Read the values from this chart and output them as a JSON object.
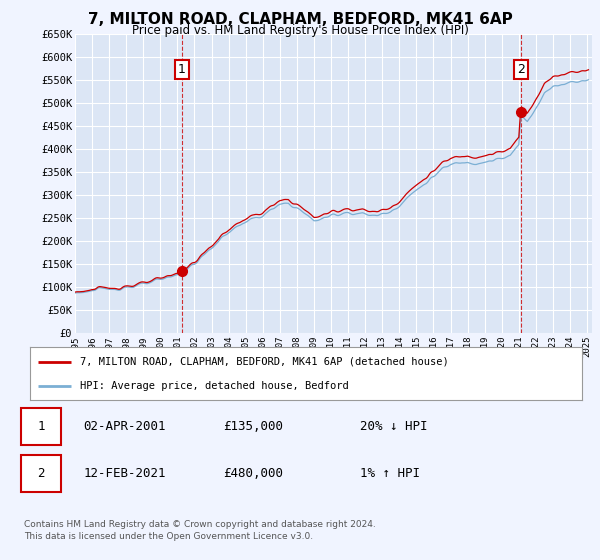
{
  "title": "7, MILTON ROAD, CLAPHAM, BEDFORD, MK41 6AP",
  "subtitle": "Price paid vs. HM Land Registry's House Price Index (HPI)",
  "ylabel_ticks": [
    "£0",
    "£50K",
    "£100K",
    "£150K",
    "£200K",
    "£250K",
    "£300K",
    "£350K",
    "£400K",
    "£450K",
    "£500K",
    "£550K",
    "£600K",
    "£650K"
  ],
  "ytick_values": [
    0,
    50000,
    100000,
    150000,
    200000,
    250000,
    300000,
    350000,
    400000,
    450000,
    500000,
    550000,
    600000,
    650000
  ],
  "background_color": "#f0f4ff",
  "plot_bg_color": "#dce6f5",
  "grid_color": "#ffffff",
  "hpi_color": "#7bafd4",
  "price_color": "#cc0000",
  "annotation_box_color": "#cc0000",
  "sale1_year": 2001.25,
  "sale1_price": 135000,
  "sale2_year": 2021.12,
  "sale2_price": 480000,
  "legend_label_red": "7, MILTON ROAD, CLAPHAM, BEDFORD, MK41 6AP (detached house)",
  "legend_label_blue": "HPI: Average price, detached house, Bedford",
  "footnote1": "Contains HM Land Registry data © Crown copyright and database right 2024.",
  "footnote2": "This data is licensed under the Open Government Licence v3.0.",
  "table_row1": [
    "1",
    "02-APR-2001",
    "£135,000",
    "20% ↓ HPI"
  ],
  "table_row2": [
    "2",
    "12-FEB-2021",
    "£480,000",
    "1% ↑ HPI"
  ]
}
